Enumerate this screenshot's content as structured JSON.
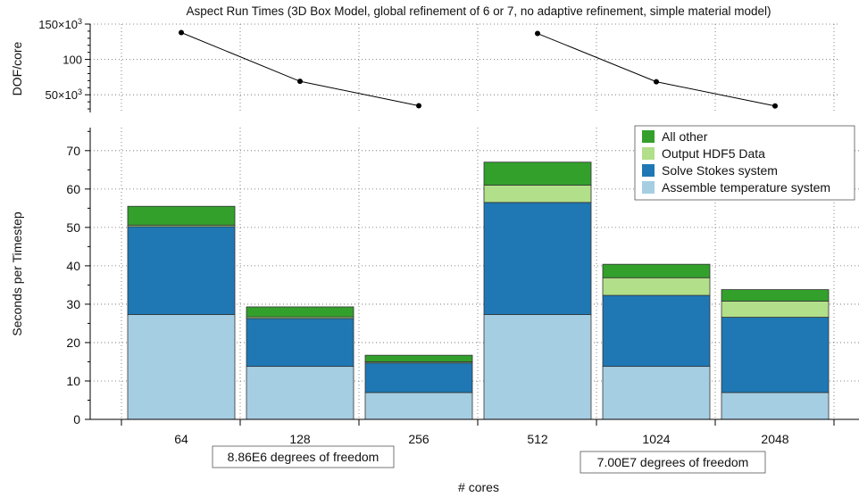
{
  "chart_data": [
    {
      "type": "line",
      "title": "Aspect Run Times (3D Box Model, global refinement of 6 or 7, no adaptive refinement, simple material model)",
      "ylabel": "DOF/core",
      "ylim": [
        25000,
        150000
      ],
      "ytick_labels": [
        {
          "value": 150000,
          "label": "150×10",
          "exp": "3"
        },
        {
          "value": 100000,
          "label": "100",
          "exp": ""
        },
        {
          "value": 50000,
          "label": "50×10",
          "exp": "3"
        }
      ],
      "categories": [
        "64",
        "128",
        "256",
        "512",
        "1024",
        "2048"
      ],
      "segments": [
        {
          "categories": [
            "64",
            "128",
            "256"
          ],
          "values": [
            138000,
            69000,
            34500
          ]
        },
        {
          "categories": [
            "512",
            "1024",
            "2048"
          ],
          "values": [
            136700,
            68400,
            34200
          ]
        }
      ],
      "grid": true
    },
    {
      "type": "bar",
      "stacked": true,
      "xlabel": "# cores",
      "ylabel": "Seconds per Timestep",
      "ylim": [
        0,
        76
      ],
      "yticks": [
        0,
        10,
        20,
        30,
        40,
        50,
        60,
        70
      ],
      "categories": [
        "64",
        "128",
        "256",
        "512",
        "1024",
        "2048"
      ],
      "series": [
        {
          "name": "Assemble temperature system",
          "color": "#a6cee3",
          "values": [
            27.3,
            13.8,
            7.0,
            27.3,
            13.8,
            7.0
          ]
        },
        {
          "name": "Solve Stokes system",
          "color": "#1f78b4",
          "values": [
            22.9,
            12.5,
            7.7,
            29.2,
            18.5,
            19.6
          ]
        },
        {
          "name": "Output HDF5 Data",
          "color": "#b2df8a",
          "values": [
            0.4,
            0.4,
            0.3,
            4.5,
            4.6,
            4.2
          ]
        },
        {
          "name": "All other",
          "color": "#33a02c",
          "values": [
            4.9,
            2.6,
            1.7,
            6.0,
            3.5,
            3.0
          ]
        }
      ],
      "legend": {
        "placement": "top-right",
        "order": [
          "All other",
          "Output HDF5 Data",
          "Solve Stokes system",
          "Assemble temperature system"
        ]
      },
      "group_labels": [
        {
          "label": "8.86E6 degrees of freedom",
          "categories": [
            "64",
            "128",
            "256"
          ]
        },
        {
          "label": "7.00E7 degrees of freedom",
          "categories": [
            "512",
            "1024",
            "2048"
          ]
        }
      ],
      "grid": true
    }
  ]
}
